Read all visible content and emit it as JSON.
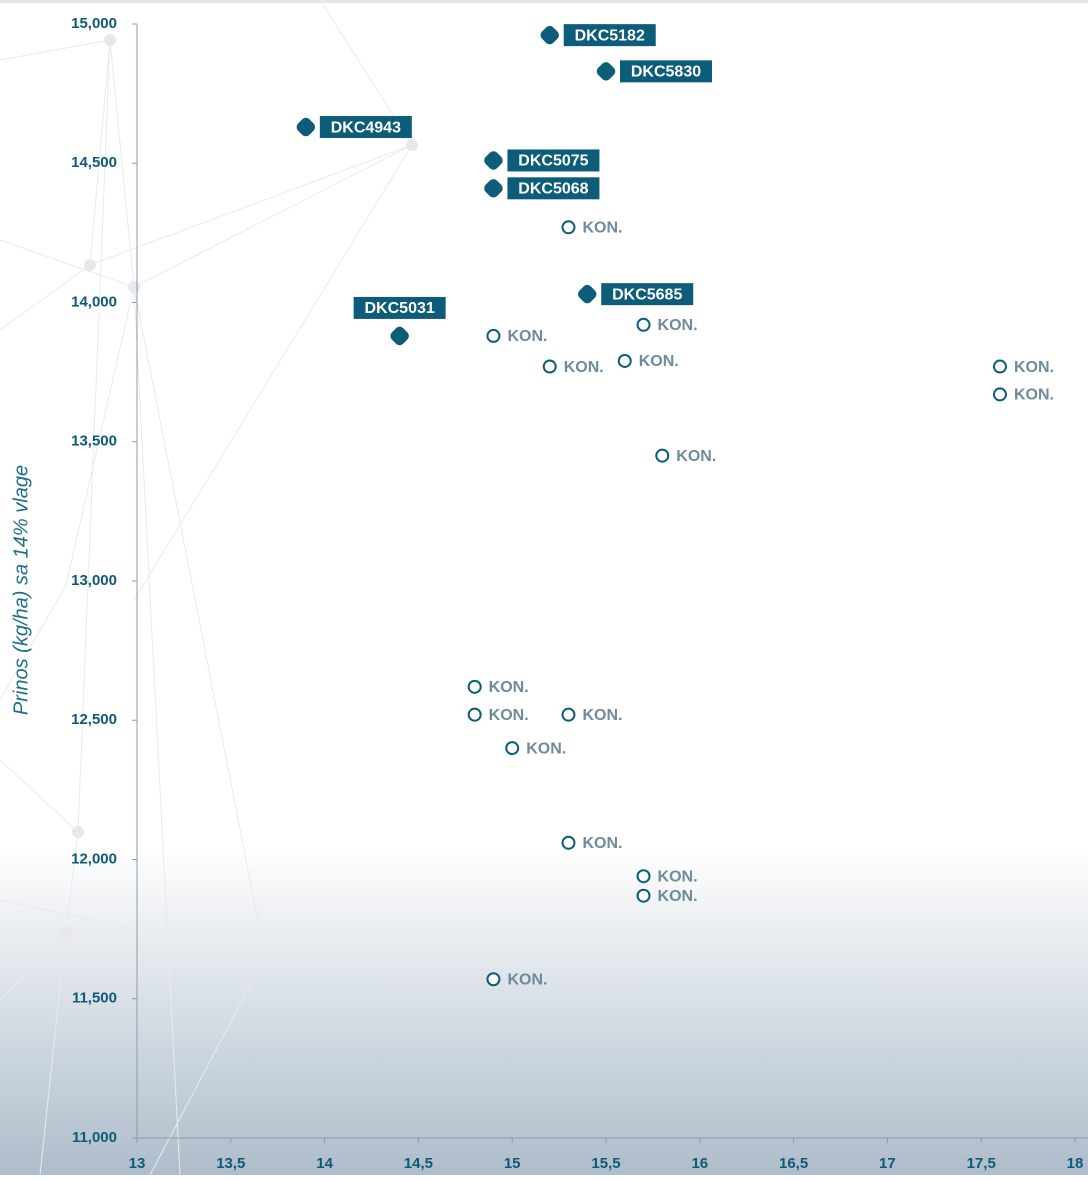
{
  "chart_data": {
    "type": "scatter",
    "y_label": "Prinos (kg/ha) sa 14% vlage",
    "xlim": [
      13,
      18
    ],
    "ylim": [
      11000,
      15000
    ],
    "xticks": [
      13,
      {
        "value": 13.5,
        "label": "13,5"
      },
      14,
      {
        "value": 14.5,
        "label": "14,5"
      },
      15,
      {
        "value": 15.5,
        "label": "15,5"
      },
      16,
      {
        "value": 16.5,
        "label": "16,5"
      },
      17,
      {
        "value": 17.5,
        "label": "17,5"
      },
      18
    ],
    "yticks": [
      {
        "value": 11000,
        "label": "11,000"
      },
      {
        "value": 11500,
        "label": "11,500"
      },
      {
        "value": 12000,
        "label": "12,000"
      },
      {
        "value": 12500,
        "label": "12,500"
      },
      {
        "value": 13000,
        "label": "13,000"
      },
      {
        "value": 13500,
        "label": "13,500"
      },
      {
        "value": 14000,
        "label": "14,000"
      },
      {
        "value": 14500,
        "label": "14,500"
      },
      {
        "value": 15000,
        "label": "15,000"
      }
    ],
    "series": [
      {
        "color": "#0d5c79",
        "marker": "filled",
        "x": [
          15.2,
          15.5,
          13.9,
          14.9,
          14.9,
          14.4,
          15.4
        ],
        "values": [
          14960,
          14830,
          14630,
          14510,
          14410,
          13880,
          14030
        ],
        "labels": [
          "DKC5182",
          "DKC5830",
          "DKC4943",
          "DKC5075",
          "DKC5068",
          "DKC5031",
          "DKC5685"
        ]
      },
      {
        "color": "#0d5c79",
        "marker": "open",
        "x": [
          15.3,
          15.7,
          14.9,
          15.6,
          15.2,
          17.6,
          17.6,
          15.8,
          14.8,
          14.8,
          15.3,
          15,
          15.3,
          15.7,
          15.7,
          14.9
        ],
        "values": [
          14270,
          13920,
          13880,
          13790,
          13770,
          13770,
          13670,
          13450,
          12620,
          12520,
          12520,
          12400,
          12060,
          11940,
          11870,
          11570
        ],
        "labels": [
          "KON.",
          "KON.",
          "KON.",
          "KON.",
          "KON.",
          "KON.",
          "KON.",
          "KON.",
          "KON.",
          "KON.",
          "KON.",
          "KON.",
          "KON.",
          "KON.",
          "KON.",
          "KON."
        ]
      }
    ]
  }
}
